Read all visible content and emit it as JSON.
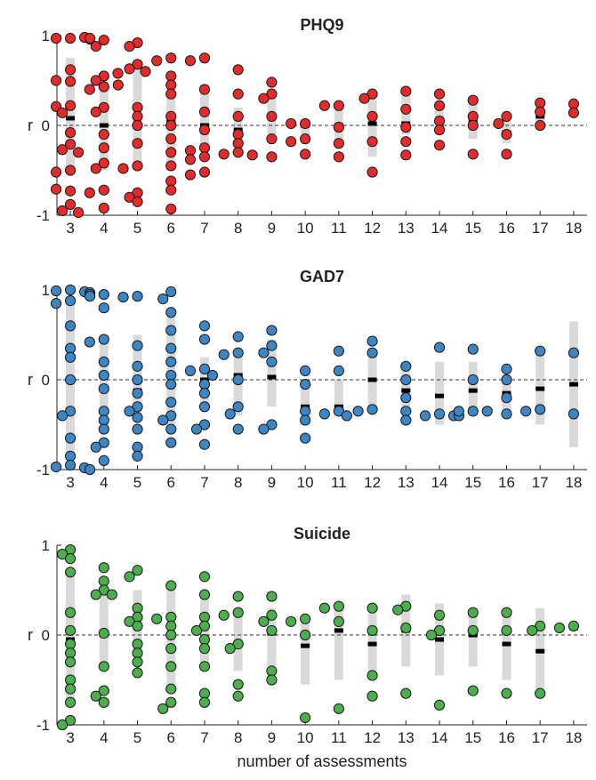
{
  "figure": {
    "xlabel": "number of assessments",
    "ylabel": "r",
    "x_ticks": [
      "3",
      "4",
      "5",
      "6",
      "7",
      "8",
      "9",
      "10",
      "11",
      "12",
      "13",
      "14",
      "15",
      "16",
      "17",
      "18"
    ],
    "y_ticks": [
      "-1",
      "0",
      "1"
    ]
  },
  "chart_data": [
    {
      "type": "scatter",
      "title": "PHQ9",
      "color": "#e32b2b",
      "ylim": [
        -1,
        1
      ],
      "xlim": [
        2.6,
        18.4
      ],
      "zero_line": "dashed",
      "groups": [
        {
          "x": 3,
          "median": 0.08,
          "iqr": [
            -0.45,
            0.75
          ],
          "points": [
            0.97,
            0.97,
            0.98,
            0.96,
            0.97,
            0.62,
            0.49,
            0.5,
            0.22,
            0.21,
            0.14,
            -0.08,
            -0.21,
            -0.27,
            -0.3,
            -0.5,
            -0.52,
            -0.73,
            -0.71,
            -0.88,
            -0.95,
            -0.97
          ]
        },
        {
          "x": 4,
          "median": 0.0,
          "iqr": [
            -0.5,
            0.5
          ],
          "points": [
            0.95,
            0.88,
            0.55,
            0.5,
            0.43,
            0.4,
            0.45,
            0.2,
            0.15,
            -0.1,
            -0.25,
            -0.42,
            -0.48,
            -0.72,
            -0.75,
            -0.92
          ]
        },
        {
          "x": 5,
          "median": 0.0,
          "iqr": [
            -0.5,
            0.65
          ],
          "points": [
            0.92,
            0.88,
            0.68,
            0.63,
            0.6,
            0.58,
            0.2,
            0.1,
            0.0,
            -0.2,
            -0.45,
            -0.48,
            -0.75,
            -0.8,
            -0.85
          ]
        },
        {
          "x": 6,
          "median": 0.05,
          "iqr": [
            -0.5,
            0.6
          ],
          "points": [
            0.75,
            0.72,
            0.55,
            0.45,
            0.35,
            0.1,
            0.0,
            -0.15,
            -0.3,
            -0.45,
            -0.62,
            -0.72,
            -0.93
          ]
        },
        {
          "x": 7,
          "median": 0.0,
          "iqr": [
            -0.25,
            0.45
          ],
          "points": [
            0.75,
            0.72,
            0.4,
            0.15,
            -0.05,
            -0.25,
            -0.28,
            -0.35,
            -0.38,
            -0.52,
            -0.55
          ]
        },
        {
          "x": 8,
          "median": -0.05,
          "iqr": [
            -0.3,
            0.2
          ],
          "points": [
            0.62,
            0.35,
            0.1,
            -0.1,
            -0.2,
            -0.3,
            -0.32,
            -0.33
          ]
        },
        {
          "x": 9,
          "median": 0.1,
          "iqr": [
            -0.1,
            0.3
          ],
          "points": [
            0.48,
            0.35,
            0.3,
            0.1,
            -0.15,
            -0.35
          ]
        },
        {
          "x": 10,
          "median": 0.0,
          "iqr": [
            -0.2,
            0.05
          ],
          "points": [
            0.02,
            0.02,
            -0.15,
            -0.18,
            -0.32
          ]
        },
        {
          "x": 11,
          "median": 0.0,
          "iqr": [
            -0.2,
            0.2
          ],
          "points": [
            0.22,
            0.22,
            -0.02,
            -0.2,
            -0.35
          ]
        },
        {
          "x": 12,
          "median": 0.02,
          "iqr": [
            -0.35,
            0.3
          ],
          "points": [
            0.35,
            0.3,
            0.1,
            -0.18,
            -0.52
          ]
        },
        {
          "x": 13,
          "median": 0.02,
          "iqr": [
            -0.1,
            0.35
          ],
          "points": [
            0.38,
            0.18,
            -0.02,
            -0.18,
            -0.33
          ]
        },
        {
          "x": 14,
          "median": 0.05,
          "iqr": [
            -0.1,
            0.25
          ],
          "points": [
            0.35,
            0.22,
            0.05,
            -0.05,
            -0.22
          ]
        },
        {
          "x": 15,
          "median": 0.05,
          "iqr": [
            -0.15,
            0.25
          ],
          "points": [
            0.28,
            0.1,
            0.0,
            -0.32
          ]
        },
        {
          "x": 16,
          "median": -0.08,
          "iqr": [
            -0.2,
            0.1
          ],
          "points": [
            0.1,
            0.02,
            -0.1,
            -0.32
          ]
        },
        {
          "x": 17,
          "median": 0.1,
          "iqr": [
            0.05,
            0.2
          ],
          "points": [
            0.25,
            0.15,
            0.0
          ]
        },
        {
          "x": 18,
          "median": 0.15,
          "iqr": [
            0.1,
            0.2
          ],
          "points": [
            0.24,
            0.14
          ]
        }
      ]
    },
    {
      "type": "scatter",
      "title": "GAD7",
      "color": "#3d86c6",
      "ylim": [
        -1,
        1
      ],
      "xlim": [
        2.6,
        18.4
      ],
      "zero_line": "dashed",
      "groups": [
        {
          "x": 3,
          "median": 0.0,
          "iqr": [
            -0.85,
            0.85
          ],
          "points": [
            1.0,
            0.99,
            0.98,
            0.97,
            0.95,
            0.93,
            0.88,
            0.85,
            0.6,
            0.35,
            0.25,
            0.0,
            -0.35,
            -0.4,
            -0.65,
            -0.85,
            -0.95,
            -0.97,
            -0.98,
            -1.0
          ]
        },
        {
          "x": 4,
          "median": -0.1,
          "iqr": [
            -0.6,
            0.5
          ],
          "points": [
            0.95,
            0.8,
            0.45,
            0.42,
            0.2,
            0.05,
            -0.1,
            -0.35,
            -0.45,
            -0.55,
            -0.7,
            -0.75,
            -0.9
          ]
        },
        {
          "x": 5,
          "median": -0.12,
          "iqr": [
            -0.4,
            0.5
          ],
          "points": [
            0.93,
            0.92,
            0.38,
            0.15,
            0.0,
            -0.15,
            -0.3,
            -0.35,
            -0.42,
            -0.55,
            -0.75,
            -0.85
          ]
        },
        {
          "x": 6,
          "median": 0.05,
          "iqr": [
            -0.5,
            0.7
          ],
          "points": [
            0.98,
            0.9,
            0.75,
            0.55,
            0.35,
            0.2,
            0.05,
            -0.05,
            -0.25,
            -0.4,
            -0.45,
            -0.55,
            -0.7
          ]
        },
        {
          "x": 7,
          "median": 0.0,
          "iqr": [
            -0.3,
            0.25
          ],
          "points": [
            0.6,
            0.45,
            0.12,
            0.1,
            0.05,
            -0.05,
            -0.15,
            -0.3,
            -0.5,
            -0.55,
            -0.72
          ]
        },
        {
          "x": 8,
          "median": 0.05,
          "iqr": [
            -0.4,
            0.3
          ],
          "points": [
            0.48,
            0.3,
            0.28,
            0.0,
            -0.3,
            -0.38,
            -0.55
          ]
        },
        {
          "x": 9,
          "median": 0.03,
          "iqr": [
            -0.3,
            0.45
          ],
          "points": [
            0.55,
            0.38,
            0.3,
            0.2,
            -0.5,
            -0.55
          ]
        },
        {
          "x": 10,
          "median": -0.3,
          "iqr": [
            -0.5,
            0.0
          ],
          "points": [
            0.1,
            -0.05,
            -0.35,
            -0.45,
            -0.65
          ]
        },
        {
          "x": 11,
          "median": -0.3,
          "iqr": [
            -0.4,
            0.0
          ],
          "points": [
            0.32,
            0.1,
            -0.35,
            -0.38,
            -0.4
          ]
        },
        {
          "x": 12,
          "median": 0.0,
          "iqr": [
            -0.3,
            0.3
          ],
          "points": [
            0.43,
            0.3,
            -0.33,
            -0.35
          ]
        },
        {
          "x": 13,
          "median": -0.12,
          "iqr": [
            -0.35,
            0.15
          ],
          "points": [
            0.15,
            0.0,
            -0.2,
            -0.35,
            -0.45
          ]
        },
        {
          "x": 14,
          "median": -0.18,
          "iqr": [
            -0.5,
            0.2
          ],
          "points": [
            0.36,
            -0.38,
            -0.4,
            -0.4,
            -0.4
          ]
        },
        {
          "x": 15,
          "median": -0.12,
          "iqr": [
            -0.4,
            0.2
          ],
          "points": [
            0.34,
            0.0,
            -0.35,
            -0.35,
            -0.35
          ]
        },
        {
          "x": 16,
          "median": -0.15,
          "iqr": [
            -0.35,
            0.05
          ],
          "points": [
            0.12,
            0.0,
            -0.2,
            -0.38
          ]
        },
        {
          "x": 17,
          "median": -0.1,
          "iqr": [
            -0.5,
            0.3
          ],
          "points": [
            0.32,
            -0.33,
            -0.35
          ]
        },
        {
          "x": 18,
          "median": -0.05,
          "iqr": [
            -0.75,
            0.65
          ],
          "points": [
            0.3,
            -0.38
          ]
        }
      ]
    },
    {
      "type": "scatter",
      "title": "Suicide",
      "color": "#4cae4c",
      "ylim": [
        -1,
        1
      ],
      "xlim": [
        2.6,
        18.4
      ],
      "zero_line": "dashed",
      "groups": [
        {
          "x": 3,
          "median": -0.05,
          "iqr": [
            -0.75,
            0.65
          ],
          "points": [
            0.95,
            0.9,
            0.85,
            0.7,
            0.25,
            0.05,
            -0.1,
            -0.2,
            -0.3,
            -0.5,
            -0.6,
            -0.75,
            -0.95,
            -1.0
          ]
        },
        {
          "x": 4,
          "median": 0.0,
          "iqr": [
            -0.4,
            0.55
          ],
          "points": [
            0.75,
            0.6,
            0.5,
            0.45,
            0.45,
            0.02,
            -0.35,
            -0.62,
            -0.68,
            -0.75
          ]
        },
        {
          "x": 5,
          "median": 0.1,
          "iqr": [
            -0.3,
            0.5
          ],
          "points": [
            0.72,
            0.65,
            0.3,
            0.2,
            0.15,
            0.1,
            -0.1,
            -0.2,
            -0.3,
            -0.42
          ]
        },
        {
          "x": 6,
          "median": -0.15,
          "iqr": [
            -0.55,
            0.5
          ],
          "points": [
            0.55,
            0.2,
            0.18,
            0.1,
            0.0,
            -0.15,
            -0.35,
            -0.6,
            -0.75,
            -0.82
          ]
        },
        {
          "x": 7,
          "median": -0.05,
          "iqr": [
            -0.4,
            0.45
          ],
          "points": [
            0.65,
            0.45,
            0.2,
            0.1,
            0.05,
            -0.05,
            -0.15,
            -0.35,
            -0.65,
            -0.75
          ]
        },
        {
          "x": 8,
          "median": -0.1,
          "iqr": [
            -0.4,
            0.25
          ],
          "points": [
            0.43,
            0.25,
            0.22,
            -0.1,
            -0.15,
            -0.55,
            -0.68
          ]
        },
        {
          "x": 9,
          "median": 0.02,
          "iqr": [
            -0.35,
            0.3
          ],
          "points": [
            0.43,
            0.22,
            0.15,
            0.05,
            -0.4,
            -0.5
          ]
        },
        {
          "x": 10,
          "median": -0.12,
          "iqr": [
            -0.55,
            0.2
          ],
          "points": [
            0.18,
            0.15,
            0.0,
            -0.92
          ]
        },
        {
          "x": 11,
          "median": 0.05,
          "iqr": [
            -0.5,
            0.35
          ],
          "points": [
            0.32,
            0.3,
            0.15,
            -0.82
          ]
        },
        {
          "x": 12,
          "median": -0.1,
          "iqr": [
            -0.4,
            0.3
          ],
          "points": [
            0.3,
            0.05,
            -0.45,
            -0.68
          ]
        },
        {
          "x": 13,
          "median": 0.05,
          "iqr": [
            -0.35,
            0.45
          ],
          "points": [
            0.32,
            0.28,
            0.08,
            -0.65
          ]
        },
        {
          "x": 14,
          "median": -0.05,
          "iqr": [
            -0.45,
            0.35
          ],
          "points": [
            0.22,
            0.05,
            0.0,
            -0.78
          ]
        },
        {
          "x": 15,
          "median": 0.0,
          "iqr": [
            -0.35,
            0.3
          ],
          "points": [
            0.25,
            0.05,
            -0.62
          ]
        },
        {
          "x": 16,
          "median": -0.1,
          "iqr": [
            -0.5,
            0.25
          ],
          "points": [
            0.25,
            0.05,
            -0.65
          ]
        },
        {
          "x": 17,
          "median": -0.18,
          "iqr": [
            -0.6,
            0.3
          ],
          "points": [
            0.1,
            0.05,
            -0.65
          ]
        },
        {
          "x": 18,
          "median": 0.08,
          "iqr": [
            0.05,
            0.1
          ],
          "points": [
            0.1,
            0.08
          ]
        }
      ]
    }
  ]
}
